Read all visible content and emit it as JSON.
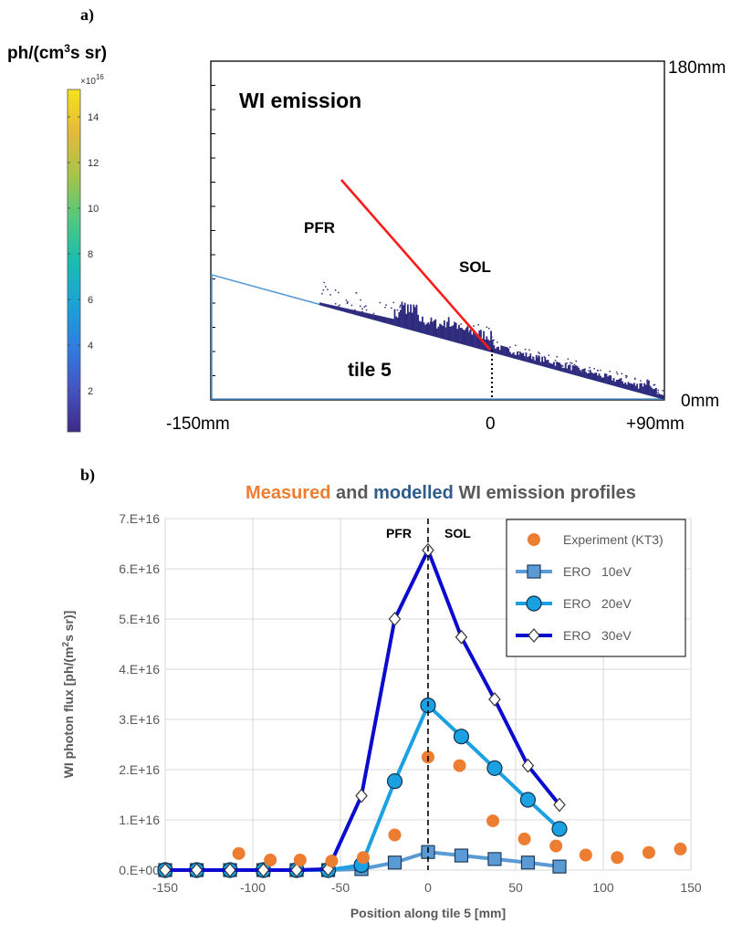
{
  "panel_a": {
    "label": "a)",
    "colorbar": {
      "title_prefix": "ph/(cm",
      "title_sup": "3",
      "title_suffix": "s sr)",
      "exponent": "×10",
      "exponent_power": "16",
      "ticks": [
        "2",
        "4",
        "6",
        "8",
        "10",
        "12",
        "14"
      ],
      "tick_values": [
        2,
        4,
        6,
        8,
        10,
        12,
        14
      ],
      "range": [
        0.2,
        15.2
      ],
      "colors": [
        "#3e2a8a",
        "#4454c4",
        "#2d7ee0",
        "#1aa3d8",
        "#19bdb0",
        "#52c97e",
        "#a6c548",
        "#e6b93a",
        "#f6e21c"
      ]
    },
    "plot": {
      "title": "WI emission",
      "label_pfr": "PFR",
      "label_sol": "SOL",
      "label_tile": "tile 5",
      "y_top_label": "180mm",
      "y_bottom_label": "0mm",
      "x_left_label": "-150mm",
      "x_mid_label": "0",
      "x_right_label": "+90mm",
      "emission_color": "#2e2b7e",
      "line_red": "#ff1a1a",
      "line_blue": "#5b9bd5"
    }
  },
  "chart_data": {
    "panel_label": "b)",
    "type": "line",
    "title_parts": [
      {
        "text": "Measured",
        "color": "#ed7d31"
      },
      {
        "text": " and ",
        "color": "#595959"
      },
      {
        "text": "modelled",
        "color": "#2e5c8a"
      },
      {
        "text": " WI emission profiles",
        "color": "#595959"
      }
    ],
    "xlabel": "Position along tile 5 [mm]",
    "ylabel_prefix": "WI photon flux [ph/(m",
    "ylabel_sup": "2",
    "ylabel_suffix": "s sr)]",
    "xlim": [
      -150,
      150
    ],
    "ylim": [
      0,
      7e+16
    ],
    "x_ticks": [
      -150,
      -100,
      -50,
      0,
      50,
      100,
      150
    ],
    "y_ticks": [
      "0.E+00",
      "1.E+16",
      "2.E+16",
      "3.E+16",
      "4.E+16",
      "5.E+16",
      "6.E+16",
      "7.E+16"
    ],
    "annotation_left": "PFR",
    "annotation_right": "SOL",
    "grid": true,
    "legend_position": "top-right",
    "series": [
      {
        "name": "Experiment (KT3)",
        "kind": "scatter",
        "color": "#ed7d31",
        "points": [
          [
            -108,
            3300000000000000.0
          ],
          [
            -90,
            2000000000000000.0
          ],
          [
            -73,
            2000000000000000.0
          ],
          [
            -55,
            1800000000000000.0
          ],
          [
            -37,
            2500000000000000.0
          ],
          [
            -19,
            7000000000000000.0
          ],
          [
            0,
            2.25e+16
          ],
          [
            18,
            2.08e+16
          ],
          [
            37,
            9800000000000000.0
          ],
          [
            55,
            6200000000000000.0
          ],
          [
            73,
            4800000000000000.0
          ],
          [
            90,
            3000000000000000.0
          ],
          [
            108,
            2500000000000000.0
          ],
          [
            126,
            3500000000000000.0
          ],
          [
            144,
            4200000000000000.0
          ]
        ]
      },
      {
        "name": "ERO   10eV",
        "kind": "line-square",
        "color": "#5b9bd5",
        "points": [
          [
            -150,
            0
          ],
          [
            -132,
            0
          ],
          [
            -113,
            0
          ],
          [
            -94,
            0
          ],
          [
            -75,
            0
          ],
          [
            -57,
            0
          ],
          [
            -38,
            200000000000000.0
          ],
          [
            -19,
            1500000000000000.0
          ],
          [
            0,
            3600000000000000.0
          ],
          [
            19,
            2900000000000000.0
          ],
          [
            38,
            2200000000000000.0
          ],
          [
            57,
            1500000000000000.0
          ],
          [
            75,
            700000000000000.0
          ]
        ]
      },
      {
        "name": "ERO   20eV",
        "kind": "line-circle",
        "color": "#1ba1e2",
        "points": [
          [
            -150,
            0
          ],
          [
            -132,
            0
          ],
          [
            -113,
            0
          ],
          [
            -94,
            0
          ],
          [
            -75,
            0
          ],
          [
            -57,
            0
          ],
          [
            -38,
            1000000000000000.0
          ],
          [
            -19,
            1.77e+16
          ],
          [
            0,
            3.28e+16
          ],
          [
            19,
            2.66e+16
          ],
          [
            38,
            2.03e+16
          ],
          [
            57,
            1.4e+16
          ],
          [
            75,
            8200000000000000.0
          ]
        ]
      },
      {
        "name": "ERO   30eV",
        "kind": "line-diamond",
        "color": "#0b0bcf",
        "points": [
          [
            -150,
            0
          ],
          [
            -132,
            0
          ],
          [
            -113,
            0
          ],
          [
            -94,
            0
          ],
          [
            -75,
            0
          ],
          [
            -57,
            200000000000000.0
          ],
          [
            -38,
            1.48e+16
          ],
          [
            -19,
            5e+16
          ],
          [
            0,
            6.37e+16
          ],
          [
            19,
            4.64e+16
          ],
          [
            38,
            3.4e+16
          ],
          [
            57,
            2.08e+16
          ],
          [
            75,
            1.3e+16
          ]
        ]
      }
    ]
  }
}
